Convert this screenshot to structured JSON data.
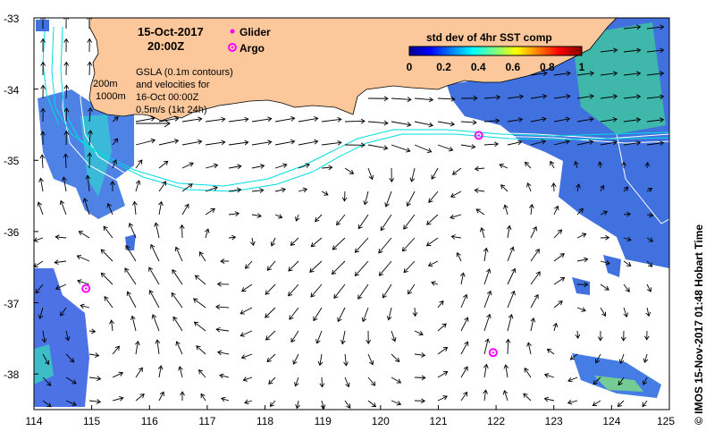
{
  "map": {
    "title_date": "15-Oct-2017",
    "title_time": "20:00Z",
    "legend": {
      "glider_label": "Glider",
      "argo_label": "Argo",
      "glider_color": "#ff00ff",
      "argo_color": "#ff00ff"
    },
    "gsla_text": [
      "GSLA (0.1m contours)",
      "and velocities for",
      "16-Oct 00:00Z",
      "0.5m/s (1kt 24h)"
    ],
    "isobath_labels": [
      "200m",
      "1000m"
    ],
    "colorbar": {
      "title": "std dev of 4hr SST comp",
      "ticks": [
        "0",
        "0.2",
        "0.4",
        "0.6",
        "0.8",
        "1"
      ],
      "range": [
        0,
        1
      ]
    },
    "credit": "©  IMOS 15-Nov-2017 01:48 Hobart Time",
    "x_ticks": [
      "114",
      "115",
      "116",
      "117",
      "118",
      "119",
      "120",
      "121",
      "122",
      "123",
      "124",
      "125"
    ],
    "y_ticks": [
      "-33",
      "-34",
      "-35",
      "-36",
      "-37",
      "-38"
    ],
    "lon_range": [
      114,
      125
    ],
    "lat_range": [
      -38.5,
      -33
    ],
    "argo_floats": [
      {
        "lon": 121.7,
        "lat": -34.65
      },
      {
        "lon": 114.9,
        "lat": -36.8
      },
      {
        "lon": 121.95,
        "lat": -37.7
      }
    ],
    "colors": {
      "land": "#fcc89b",
      "contour": "#00dddd",
      "isobath": "#ffffff",
      "arrow": "#000000"
    }
  }
}
